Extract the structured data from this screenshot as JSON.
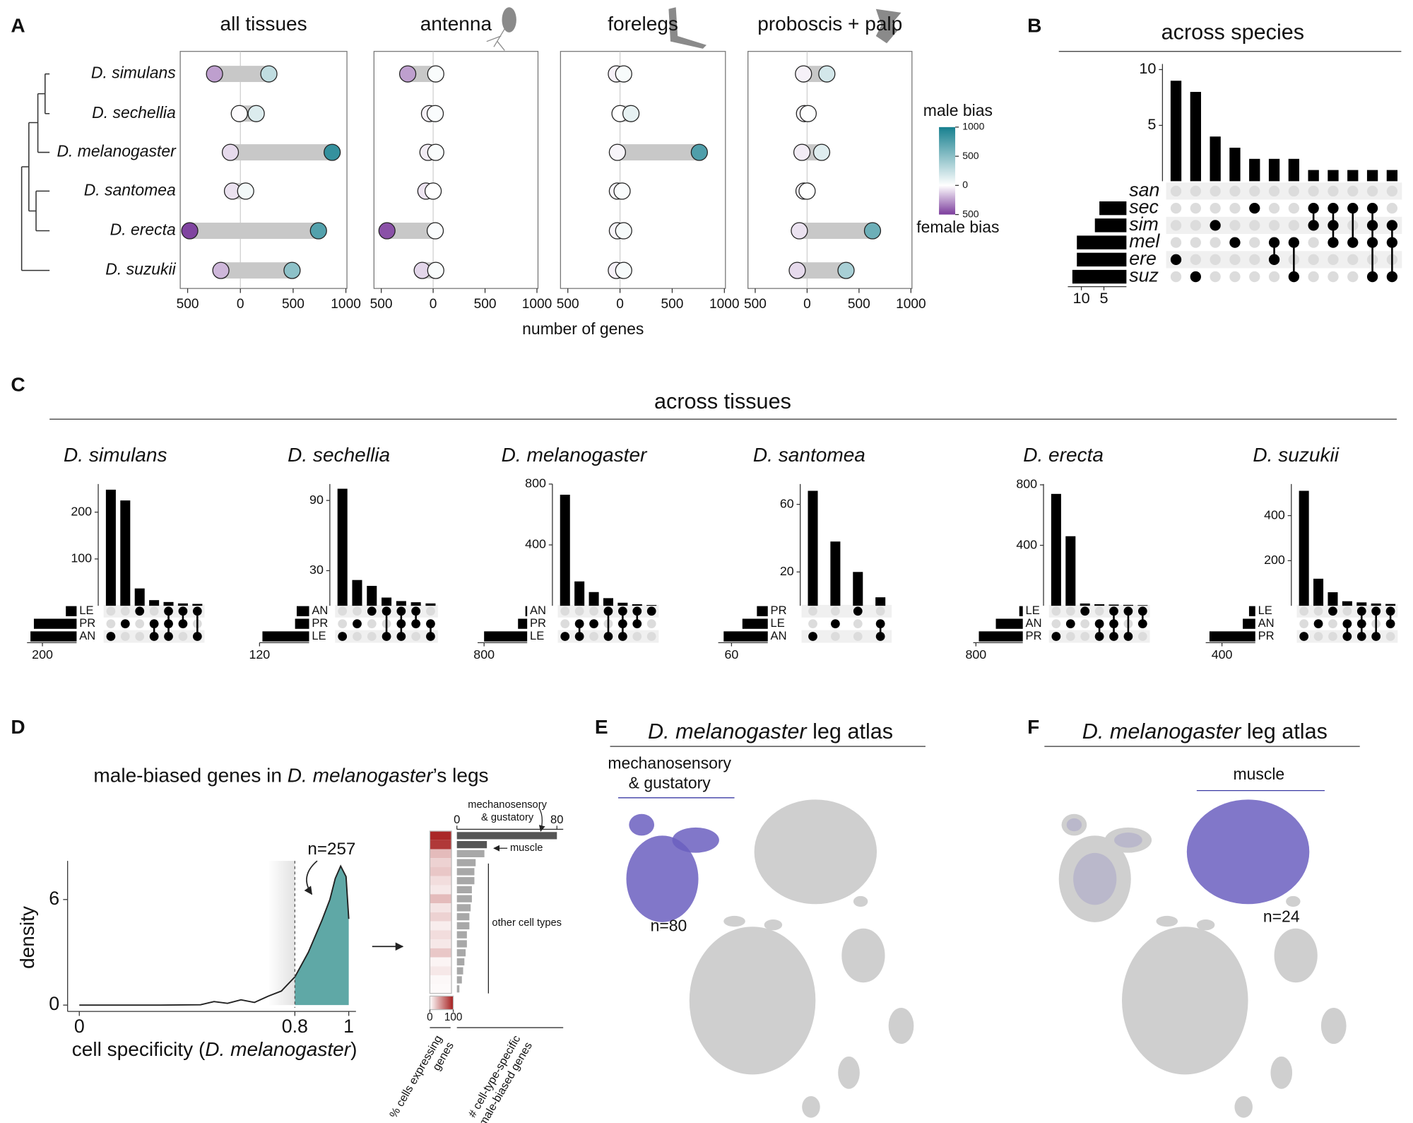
{
  "chart_data": [
    {
      "type": "dumbbell",
      "panel": "A",
      "species": [
        "D. simulans",
        "D. sechellia",
        "D. melanogaster",
        "D. santomea",
        "D. erecta",
        "D. suzukii"
      ],
      "facets": [
        {
          "title": "all tissues",
          "female": [
            -245,
            -10,
            -95,
            -75,
            -480,
            -185
          ],
          "male": [
            270,
            150,
            870,
            50,
            740,
            490
          ]
        },
        {
          "title": "antenna",
          "female": [
            -245,
            -35,
            -50,
            -70,
            -445,
            -105
          ],
          "male": [
            25,
            20,
            25,
            0,
            20,
            25
          ]
        },
        {
          "title": "forelegs",
          "female": [
            -35,
            0,
            -25,
            -25,
            -25,
            -35
          ],
          "male": [
            35,
            105,
            760,
            20,
            35,
            35
          ]
        },
        {
          "title": "proboscis + palp",
          "female": [
            -35,
            -25,
            -50,
            -30,
            -75,
            -95
          ],
          "male": [
            190,
            10,
            140,
            0,
            630,
            375
          ]
        }
      ],
      "xlim": [
        -570,
        1010
      ],
      "xticks": [
        {
          "value": -500,
          "label": "500"
        },
        0,
        500,
        1000
      ],
      "xlabel": "number of genes",
      "colors": {
        "male": "#17808f",
        "female": "#7b3c9c",
        "neutral": "#ffffff"
      },
      "colorbar": {
        "title": "male bias",
        "title_bottom": "female bias",
        "lim": [
          -500,
          1000
        ],
        "ticks": [
          1000,
          500,
          0,
          {
            "value": -500,
            "label": "500"
          }
        ]
      }
    },
    {
      "type": "upset",
      "panel": "B",
      "title": "across species",
      "sets": [
        "san",
        "sec",
        "sim",
        "mel",
        "ere",
        "suz"
      ],
      "set_sizes": [
        0,
        6,
        7,
        11,
        11,
        12
      ],
      "values": [
        9,
        8,
        4,
        3,
        2,
        2,
        2,
        1,
        1,
        1,
        1,
        1
      ],
      "membership": [
        [
          4
        ],
        [
          5
        ],
        [
          2
        ],
        [
          3
        ],
        [
          1
        ],
        [
          3,
          4
        ],
        [
          3,
          5
        ],
        [
          1,
          2
        ],
        [
          1,
          2,
          3
        ],
        [
          1,
          3
        ],
        [
          1,
          2,
          3,
          5
        ],
        [
          2,
          3,
          5
        ]
      ],
      "ylim": [
        0,
        10.5
      ],
      "yticks": [
        5,
        10
      ],
      "set_xlim": [
        0,
        13
      ],
      "set_xticks": [
        10,
        5
      ]
    },
    {
      "type": "upset_group",
      "panel": "C",
      "title": "across tissues",
      "plots": [
        {
          "title": "D. simulans",
          "sets": [
            "LE",
            "PR",
            "AN"
          ],
          "set_sizes": [
            63,
            250,
            270
          ],
          "values": [
            248,
            225,
            37,
            12,
            8,
            5,
            4
          ],
          "membership": [
            [
              2
            ],
            [
              1
            ],
            [
              0
            ],
            [
              1,
              2
            ],
            [
              0,
              1,
              2
            ],
            [
              0,
              1
            ],
            [
              0,
              2
            ]
          ],
          "ylim": [
            0,
            260
          ],
          "yticks": [
            100,
            200
          ],
          "set_xlim": [
            0,
            290
          ],
          "set_xticks": [
            200
          ]
        },
        {
          "title": "D. sechellia",
          "sets": [
            "AN",
            "PR",
            "LE"
          ],
          "set_sizes": [
            30,
            34,
            113
          ],
          "values": [
            100,
            22,
            17,
            7,
            4,
            3,
            2
          ],
          "membership": [
            [
              2
            ],
            [
              1
            ],
            [
              0
            ],
            [
              0,
              2
            ],
            [
              0,
              1,
              2
            ],
            [
              0,
              1
            ],
            [
              1,
              2
            ]
          ],
          "ylim": [
            0,
            104
          ],
          "yticks": [
            30,
            90
          ],
          "set_xlim": [
            0,
            120
          ],
          "set_xticks": [
            120
          ]
        },
        {
          "title": "D. melanogaster",
          "sets": [
            "AN",
            "PR",
            "LE"
          ],
          "set_sizes": [
            33,
            170,
            800
          ],
          "values": [
            730,
            160,
            90,
            50,
            20,
            10,
            5
          ],
          "membership": [
            [
              2
            ],
            [
              1,
              2
            ],
            [
              1
            ],
            [
              0,
              2
            ],
            [
              0,
              1,
              2
            ],
            [
              0,
              1
            ],
            [
              0
            ]
          ],
          "ylim": [
            0,
            800
          ],
          "yticks": [
            400,
            800
          ],
          "set_xlim": [
            0,
            920
          ],
          "set_xticks": [
            800
          ]
        },
        {
          "title": "D. santomea",
          "sets": [
            "PR",
            "LE",
            "AN"
          ],
          "set_sizes": [
            18,
            42,
            73
          ],
          "values": [
            68,
            38,
            20,
            5
          ],
          "membership": [
            [
              2
            ],
            [
              1
            ],
            [
              0
            ],
            [
              1,
              2
            ]
          ],
          "ylim": [
            0,
            72
          ],
          "yticks": [
            20,
            60
          ],
          "set_xlim": [
            0,
            82
          ],
          "set_xticks": [
            60
          ]
        },
        {
          "title": "D. erecta",
          "sets": [
            "LE",
            "AN",
            "PR"
          ],
          "set_sizes": [
            60,
            460,
            750
          ],
          "values": [
            740,
            460,
            15,
            10,
            8,
            6,
            4
          ],
          "membership": [
            [
              2
            ],
            [
              1
            ],
            [
              0
            ],
            [
              1,
              2
            ],
            [
              0,
              1,
              2
            ],
            [
              0,
              2
            ],
            [
              0,
              1
            ]
          ],
          "ylim": [
            0,
            805
          ],
          "yticks": [
            400,
            800
          ],
          "set_xlim": [
            0,
            846
          ],
          "set_xticks": [
            800
          ]
        },
        {
          "title": "D. suzukii",
          "sets": [
            "LE",
            "AN",
            "PR"
          ],
          "set_sizes": [
            75,
            150,
            550
          ],
          "values": [
            510,
            120,
            60,
            20,
            15,
            10,
            8
          ],
          "membership": [
            [
              2
            ],
            [
              1
            ],
            [
              0
            ],
            [
              1,
              2
            ],
            [
              0,
              1,
              2
            ],
            [
              0,
              2
            ],
            [
              0,
              1
            ]
          ],
          "ylim": [
            0,
            540
          ],
          "yticks": [
            200,
            400
          ],
          "set_xlim": [
            0,
            595
          ],
          "set_xticks": [
            400
          ]
        }
      ]
    },
    {
      "type": "density",
      "panel": "D",
      "title_parts": [
        "male-biased genes in ",
        "D. melanogaster",
        "’s legs"
      ],
      "x": [
        0,
        0.3,
        0.45,
        0.5,
        0.55,
        0.6,
        0.65,
        0.7,
        0.75,
        0.8,
        0.85,
        0.9,
        0.93,
        0.95,
        0.97,
        0.99,
        1.0
      ],
      "y": [
        0,
        0,
        0.02,
        0.2,
        0.1,
        0.3,
        0.15,
        0.5,
        0.8,
        1.6,
        3.0,
        4.8,
        6.0,
        7.2,
        7.9,
        7.3,
        4.9
      ],
      "xlim": [
        0,
        1
      ],
      "ylim": [
        0,
        8.3
      ],
      "xticks": [
        0,
        0.8,
        1
      ],
      "yticks": [
        0,
        6
      ],
      "threshold": 0.8,
      "ylabel": "density",
      "xlabel_parts": [
        "cell specificity (",
        "D. melanogaster",
        ")"
      ],
      "annotation": "n=257",
      "color": "#5fa8a6"
    },
    {
      "type": "heatbar",
      "heat": [
        95,
        88,
        30,
        20,
        25,
        15,
        10,
        30,
        12,
        20,
        8,
        15,
        10,
        25,
        5,
        10,
        3,
        2
      ],
      "values": [
        80,
        24,
        22,
        15,
        14,
        14,
        12,
        12,
        11,
        10,
        10,
        8,
        8,
        7,
        6,
        5,
        4,
        2
      ],
      "heat_lim": [
        0,
        100
      ],
      "heat_ticks": [
        0,
        100
      ],
      "xlim": [
        0,
        80
      ],
      "xticks": [
        0,
        80
      ],
      "heat_label": [
        "% cells expressing",
        "genes"
      ],
      "xlabel": [
        "# cell-type-specific",
        "male-biased genes"
      ],
      "top_label": [
        "mechanosensory",
        "& gustatory"
      ],
      "second_label": "muscle",
      "rest_label": "other cell types",
      "colors": {
        "heat": "#a51d1d",
        "highlight": "#555555",
        "bar": "#a8a8a8"
      }
    },
    {
      "type": "embedding",
      "panel": "E",
      "title_parts": [
        "D. melanogaster",
        " leg atlas"
      ],
      "label": [
        "mechanosensory",
        "& gustatory"
      ],
      "n": "n=80",
      "highlight_color": "#6b5fc0"
    },
    {
      "type": "embedding",
      "panel": "F",
      "title_parts": [
        "D. melanogaster",
        " leg atlas"
      ],
      "label": "muscle",
      "n": "n=24",
      "highlight_color": "#6b5fc0"
    }
  ]
}
